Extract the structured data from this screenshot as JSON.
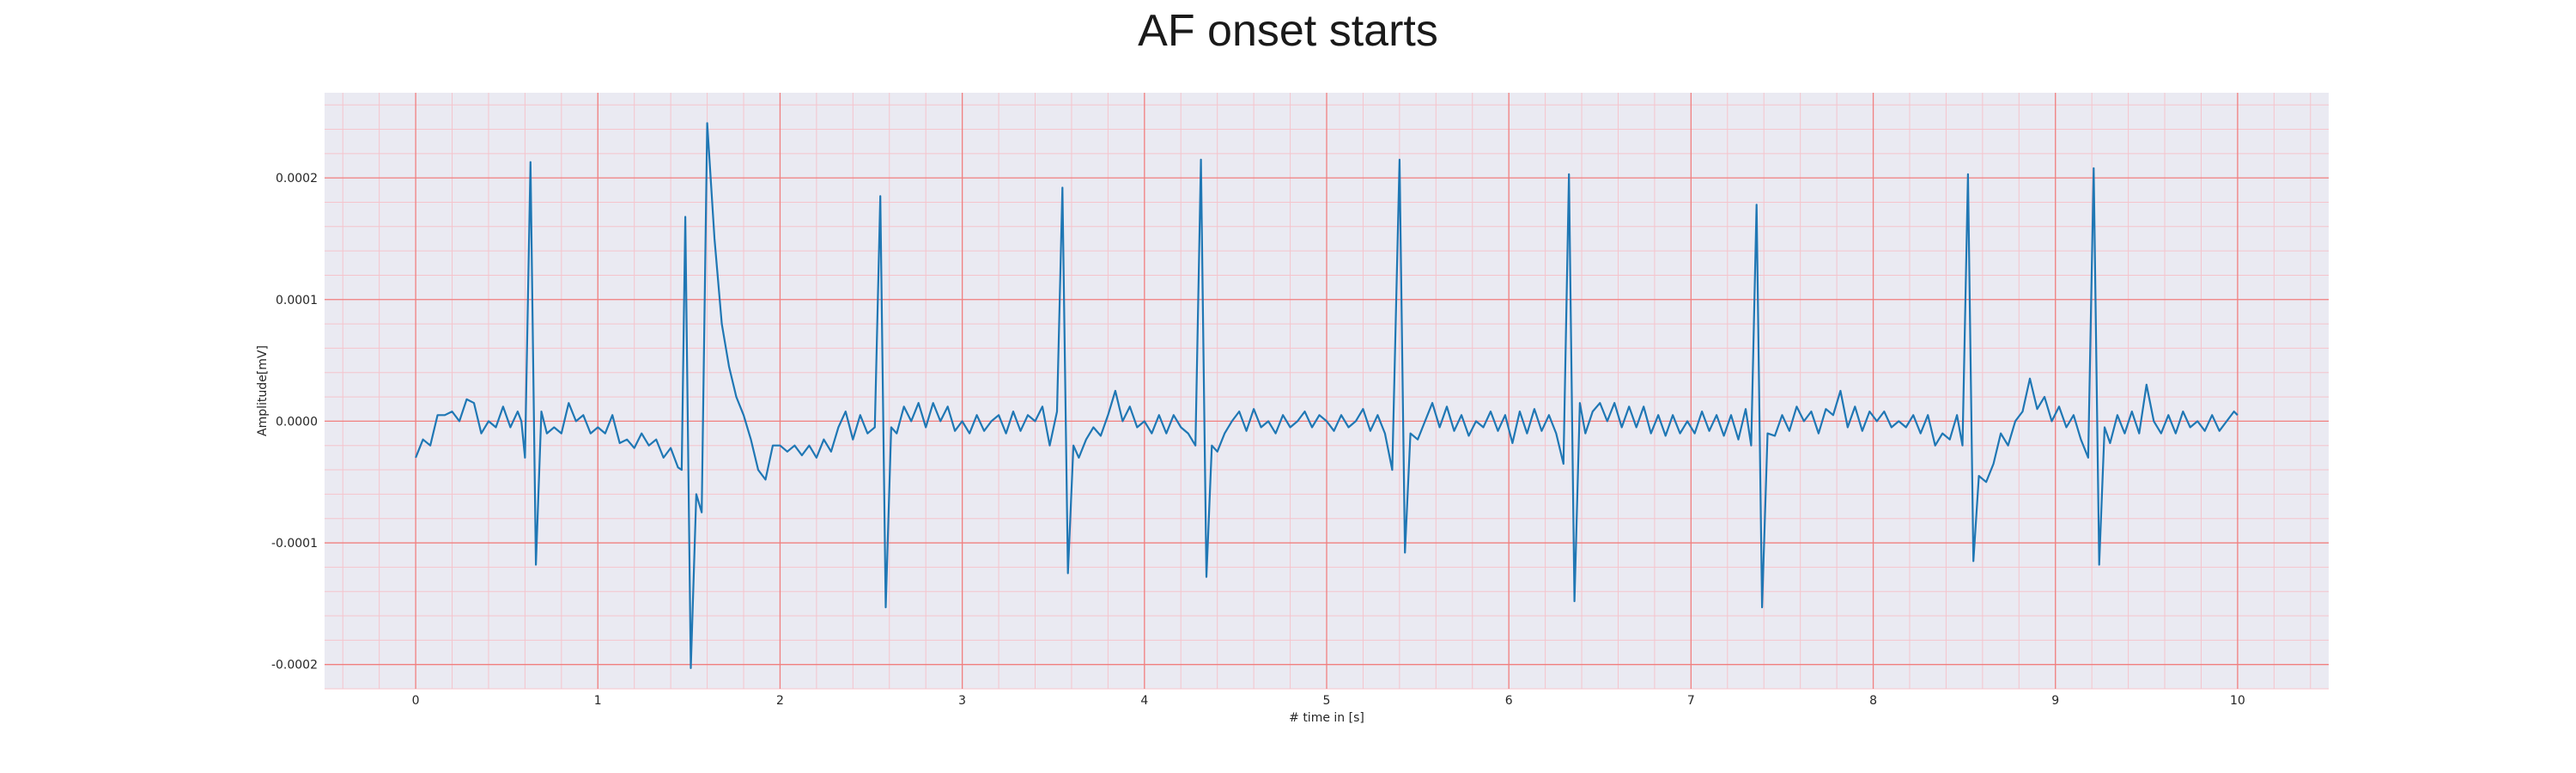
{
  "chart_data": {
    "type": "line",
    "title": "AF onset starts",
    "xlabel": "# time in [s]",
    "ylabel": "Amplitude[mV]",
    "xlim": [
      -0.5,
      10.5
    ],
    "ylim": [
      -0.00022,
      0.00027
    ],
    "xticks": [
      0,
      1,
      2,
      3,
      4,
      5,
      6,
      7,
      8,
      9,
      10
    ],
    "xtick_labels": [
      "0",
      "1",
      "2",
      "3",
      "4",
      "5",
      "6",
      "7",
      "8",
      "9",
      "10"
    ],
    "yticks": [
      -0.0002,
      -0.0001,
      0.0,
      0.0001,
      0.0002
    ],
    "ytick_labels": [
      "-0.0002",
      "-0.0001",
      "0.0000",
      "0.0001",
      "0.0002"
    ],
    "grid": true,
    "colors": {
      "line": "#1f77b4",
      "plot_background": "#eaeaf2",
      "major_grid": "#f08080",
      "minor_grid": "#f5c4cc"
    },
    "series": [
      {
        "values": [
          [
            0.0,
            -3e-05
          ],
          [
            0.04,
            -1.5e-05
          ],
          [
            0.08,
            -2e-05
          ],
          [
            0.12,
            5e-06
          ],
          [
            0.16,
            5e-06
          ],
          [
            0.2,
            8e-06
          ],
          [
            0.24,
            0.0
          ],
          [
            0.28,
            1.8e-05
          ],
          [
            0.32,
            1.5e-05
          ],
          [
            0.36,
            -1e-05
          ],
          [
            0.4,
            0.0
          ],
          [
            0.44,
            -5e-06
          ],
          [
            0.48,
            1.2e-05
          ],
          [
            0.52,
            -5e-06
          ],
          [
            0.56,
            8e-06
          ],
          [
            0.58,
            0.0
          ],
          [
            0.6,
            -3e-05
          ],
          [
            0.63,
            0.000213
          ],
          [
            0.66,
            -0.000118
          ],
          [
            0.69,
            8e-06
          ],
          [
            0.72,
            -1e-05
          ],
          [
            0.76,
            -5e-06
          ],
          [
            0.8,
            -1e-05
          ],
          [
            0.84,
            1.5e-05
          ],
          [
            0.88,
            0.0
          ],
          [
            0.92,
            5e-06
          ],
          [
            0.96,
            -1e-05
          ],
          [
            1.0,
            -5e-06
          ],
          [
            1.04,
            -1e-05
          ],
          [
            1.08,
            5e-06
          ],
          [
            1.12,
            -1.8e-05
          ],
          [
            1.16,
            -1.5e-05
          ],
          [
            1.2,
            -2.2e-05
          ],
          [
            1.24,
            -1e-05
          ],
          [
            1.28,
            -2e-05
          ],
          [
            1.32,
            -1.5e-05
          ],
          [
            1.36,
            -3e-05
          ],
          [
            1.4,
            -2.2e-05
          ],
          [
            1.44,
            -3.8e-05
          ],
          [
            1.46,
            -4e-05
          ],
          [
            1.48,
            0.000168
          ],
          [
            1.51,
            -0.000203
          ],
          [
            1.54,
            -6e-05
          ],
          [
            1.57,
            -7.5e-05
          ],
          [
            1.6,
            0.000245
          ],
          [
            1.64,
            0.00015
          ],
          [
            1.68,
            8e-05
          ],
          [
            1.72,
            4.5e-05
          ],
          [
            1.76,
            2e-05
          ],
          [
            1.8,
            5e-06
          ],
          [
            1.84,
            -1.5e-05
          ],
          [
            1.88,
            -4e-05
          ],
          [
            1.92,
            -4.8e-05
          ],
          [
            1.96,
            -2e-05
          ],
          [
            2.0,
            -2e-05
          ],
          [
            2.04,
            -2.5e-05
          ],
          [
            2.08,
            -2e-05
          ],
          [
            2.12,
            -2.8e-05
          ],
          [
            2.16,
            -2e-05
          ],
          [
            2.2,
            -3e-05
          ],
          [
            2.24,
            -1.5e-05
          ],
          [
            2.28,
            -2.5e-05
          ],
          [
            2.32,
            -5e-06
          ],
          [
            2.36,
            8e-06
          ],
          [
            2.4,
            -1.5e-05
          ],
          [
            2.44,
            5e-06
          ],
          [
            2.48,
            -1e-05
          ],
          [
            2.52,
            -5e-06
          ],
          [
            2.55,
            0.000185
          ],
          [
            2.58,
            -0.000153
          ],
          [
            2.61,
            -5e-06
          ],
          [
            2.64,
            -1e-05
          ],
          [
            2.68,
            1.2e-05
          ],
          [
            2.72,
            0.0
          ],
          [
            2.76,
            1.5e-05
          ],
          [
            2.8,
            -5e-06
          ],
          [
            2.84,
            1.5e-05
          ],
          [
            2.88,
            0.0
          ],
          [
            2.92,
            1.2e-05
          ],
          [
            2.96,
            -8e-06
          ],
          [
            3.0,
            0.0
          ],
          [
            3.04,
            -1e-05
          ],
          [
            3.08,
            5e-06
          ],
          [
            3.12,
            -8e-06
          ],
          [
            3.16,
            0.0
          ],
          [
            3.2,
            5e-06
          ],
          [
            3.24,
            -1e-05
          ],
          [
            3.28,
            8e-06
          ],
          [
            3.32,
            -8e-06
          ],
          [
            3.36,
            5e-06
          ],
          [
            3.4,
            0.0
          ],
          [
            3.44,
            1.2e-05
          ],
          [
            3.48,
            -2e-05
          ],
          [
            3.52,
            8e-06
          ],
          [
            3.55,
            0.000192
          ],
          [
            3.58,
            -0.000125
          ],
          [
            3.61,
            -2e-05
          ],
          [
            3.64,
            -3e-05
          ],
          [
            3.68,
            -1.5e-05
          ],
          [
            3.72,
            -5e-06
          ],
          [
            3.76,
            -1.2e-05
          ],
          [
            3.8,
            5e-06
          ],
          [
            3.84,
            2.5e-05
          ],
          [
            3.88,
            0.0
          ],
          [
            3.92,
            1.2e-05
          ],
          [
            3.96,
            -5e-06
          ],
          [
            4.0,
            0.0
          ],
          [
            4.04,
            -1e-05
          ],
          [
            4.08,
            5e-06
          ],
          [
            4.12,
            -1e-05
          ],
          [
            4.16,
            5e-06
          ],
          [
            4.2,
            -5e-06
          ],
          [
            4.24,
            -1e-05
          ],
          [
            4.28,
            -2e-05
          ],
          [
            4.31,
            0.000215
          ],
          [
            4.34,
            -0.000128
          ],
          [
            4.37,
            -2e-05
          ],
          [
            4.4,
            -2.5e-05
          ],
          [
            4.44,
            -1e-05
          ],
          [
            4.48,
            0.0
          ],
          [
            4.52,
            8e-06
          ],
          [
            4.56,
            -8e-06
          ],
          [
            4.6,
            1e-05
          ],
          [
            4.64,
            -5e-06
          ],
          [
            4.68,
            0.0
          ],
          [
            4.72,
            -1e-05
          ],
          [
            4.76,
            5e-06
          ],
          [
            4.8,
            -5e-06
          ],
          [
            4.84,
            0.0
          ],
          [
            4.88,
            8e-06
          ],
          [
            4.92,
            -5e-06
          ],
          [
            4.96,
            5e-06
          ],
          [
            5.0,
            0.0
          ],
          [
            5.04,
            -8e-06
          ],
          [
            5.08,
            5e-06
          ],
          [
            5.12,
            -5e-06
          ],
          [
            5.16,
            0.0
          ],
          [
            5.2,
            1e-05
          ],
          [
            5.24,
            -8e-06
          ],
          [
            5.28,
            5e-06
          ],
          [
            5.32,
            -1e-05
          ],
          [
            5.36,
            -4e-05
          ],
          [
            5.4,
            0.000215
          ],
          [
            5.43,
            -0.000108
          ],
          [
            5.46,
            -1e-05
          ],
          [
            5.5,
            -1.5e-05
          ],
          [
            5.54,
            0.0
          ],
          [
            5.58,
            1.5e-05
          ],
          [
            5.62,
            -5e-06
          ],
          [
            5.66,
            1.2e-05
          ],
          [
            5.7,
            -8e-06
          ],
          [
            5.74,
            5e-06
          ],
          [
            5.78,
            -1.2e-05
          ],
          [
            5.82,
            0.0
          ],
          [
            5.86,
            -5e-06
          ],
          [
            5.9,
            8e-06
          ],
          [
            5.94,
            -8e-06
          ],
          [
            5.98,
            5e-06
          ],
          [
            6.02,
            -1.8e-05
          ],
          [
            6.06,
            8e-06
          ],
          [
            6.1,
            -1e-05
          ],
          [
            6.14,
            1e-05
          ],
          [
            6.18,
            -8e-06
          ],
          [
            6.22,
            5e-06
          ],
          [
            6.26,
            -1e-05
          ],
          [
            6.3,
            -3.5e-05
          ],
          [
            6.33,
            0.000203
          ],
          [
            6.36,
            -0.000148
          ],
          [
            6.39,
            1.5e-05
          ],
          [
            6.42,
            -1e-05
          ],
          [
            6.46,
            8e-06
          ],
          [
            6.5,
            1.5e-05
          ],
          [
            6.54,
            0.0
          ],
          [
            6.58,
            1.5e-05
          ],
          [
            6.62,
            -5e-06
          ],
          [
            6.66,
            1.2e-05
          ],
          [
            6.7,
            -5e-06
          ],
          [
            6.74,
            1.2e-05
          ],
          [
            6.78,
            -1e-05
          ],
          [
            6.82,
            5e-06
          ],
          [
            6.86,
            -1.2e-05
          ],
          [
            6.9,
            5e-06
          ],
          [
            6.94,
            -1e-05
          ],
          [
            6.98,
            0.0
          ],
          [
            7.02,
            -1e-05
          ],
          [
            7.06,
            8e-06
          ],
          [
            7.1,
            -8e-06
          ],
          [
            7.14,
            5e-06
          ],
          [
            7.18,
            -1.2e-05
          ],
          [
            7.22,
            5e-06
          ],
          [
            7.26,
            -1.5e-05
          ],
          [
            7.3,
            1e-05
          ],
          [
            7.33,
            -2e-05
          ],
          [
            7.36,
            0.000178
          ],
          [
            7.39,
            -0.000153
          ],
          [
            7.42,
            -1e-05
          ],
          [
            7.46,
            -1.2e-05
          ],
          [
            7.5,
            5e-06
          ],
          [
            7.54,
            -8e-06
          ],
          [
            7.58,
            1.2e-05
          ],
          [
            7.62,
            0.0
          ],
          [
            7.66,
            8e-06
          ],
          [
            7.7,
            -1e-05
          ],
          [
            7.74,
            1e-05
          ],
          [
            7.78,
            5e-06
          ],
          [
            7.82,
            2.5e-05
          ],
          [
            7.86,
            -5e-06
          ],
          [
            7.9,
            1.2e-05
          ],
          [
            7.94,
            -8e-06
          ],
          [
            7.98,
            8e-06
          ],
          [
            8.02,
            0.0
          ],
          [
            8.06,
            8e-06
          ],
          [
            8.1,
            -5e-06
          ],
          [
            8.14,
            0.0
          ],
          [
            8.18,
            -5e-06
          ],
          [
            8.22,
            5e-06
          ],
          [
            8.26,
            -1e-05
          ],
          [
            8.3,
            5e-06
          ],
          [
            8.34,
            -2e-05
          ],
          [
            8.38,
            -1e-05
          ],
          [
            8.42,
            -1.5e-05
          ],
          [
            8.46,
            5e-06
          ],
          [
            8.49,
            -2e-05
          ],
          [
            8.52,
            0.000203
          ],
          [
            8.55,
            -0.000115
          ],
          [
            8.58,
            -4.5e-05
          ],
          [
            8.62,
            -5e-05
          ],
          [
            8.66,
            -3.5e-05
          ],
          [
            8.7,
            -1e-05
          ],
          [
            8.74,
            -2e-05
          ],
          [
            8.78,
            0.0
          ],
          [
            8.82,
            8e-06
          ],
          [
            8.86,
            3.5e-05
          ],
          [
            8.9,
            1e-05
          ],
          [
            8.94,
            2e-05
          ],
          [
            8.98,
            0.0
          ],
          [
            9.02,
            1.2e-05
          ],
          [
            9.06,
            -5e-06
          ],
          [
            9.1,
            5e-06
          ],
          [
            9.14,
            -1.5e-05
          ],
          [
            9.18,
            -3e-05
          ],
          [
            9.21,
            0.000208
          ],
          [
            9.24,
            -0.000118
          ],
          [
            9.27,
            -5e-06
          ],
          [
            9.3,
            -1.8e-05
          ],
          [
            9.34,
            5e-06
          ],
          [
            9.38,
            -1e-05
          ],
          [
            9.42,
            8e-06
          ],
          [
            9.46,
            -1e-05
          ],
          [
            9.5,
            3e-05
          ],
          [
            9.54,
            0.0
          ],
          [
            9.58,
            -1e-05
          ],
          [
            9.62,
            5e-06
          ],
          [
            9.66,
            -1e-05
          ],
          [
            9.7,
            8e-06
          ],
          [
            9.74,
            -5e-06
          ],
          [
            9.78,
            0.0
          ],
          [
            9.82,
            -8e-06
          ],
          [
            9.86,
            5e-06
          ],
          [
            9.9,
            -8e-06
          ],
          [
            9.94,
            0.0
          ],
          [
            9.98,
            8e-06
          ],
          [
            10.0,
            5e-06
          ]
        ]
      }
    ]
  }
}
